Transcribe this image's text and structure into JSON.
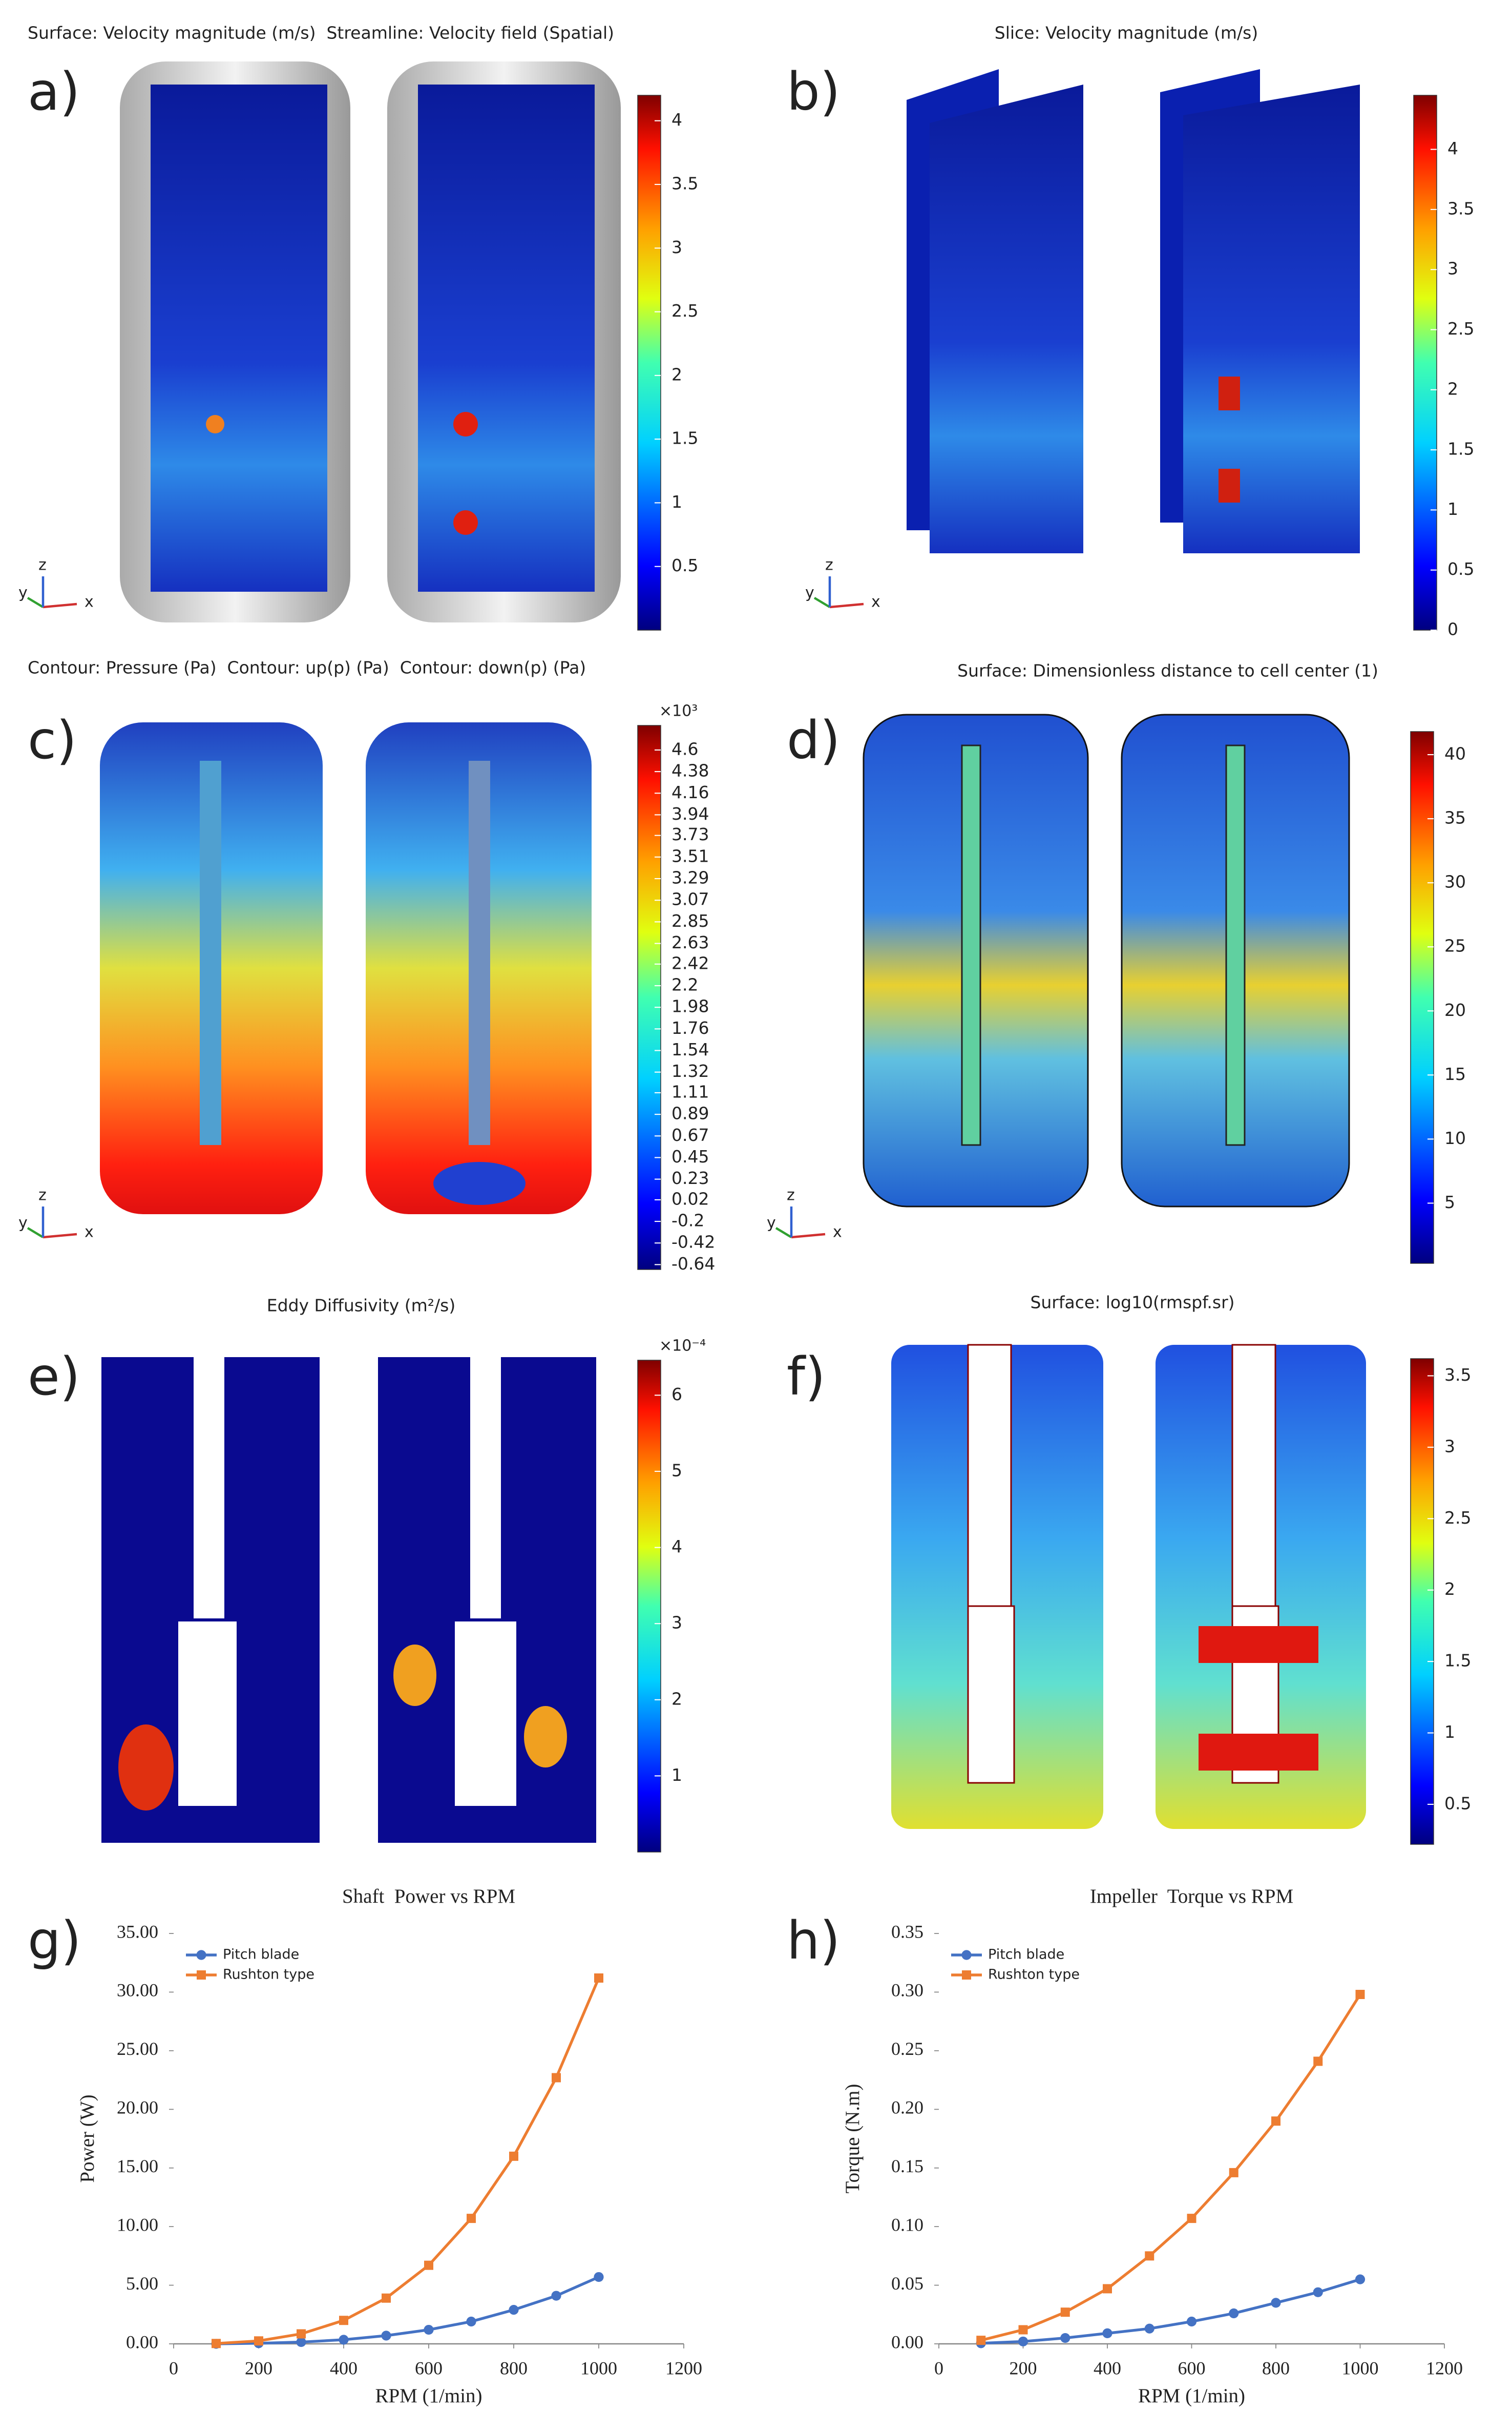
{
  "panels": [
    {
      "letter": "a)",
      "title": "Surface: Velocity magnitude (m/s)  Streamline: Velocity field (Spatial)",
      "colorbar": {
        "lim": [
          0,
          4.2
        ],
        "ticks": [
          0.5,
          1,
          1.5,
          2,
          2.5,
          3,
          3.5,
          4
        ]
      }
    },
    {
      "letter": "b)",
      "title": "Slice: Velocity magnitude (m/s)",
      "colorbar": {
        "lim": [
          0,
          4.45
        ],
        "ticks": [
          0,
          0.5,
          1,
          1.5,
          2,
          2.5,
          3,
          3.5,
          4
        ]
      }
    },
    {
      "letter": "c)",
      "title": "Contour: Pressure (Pa)  Contour: up(p) (Pa)  Contour: down(p) (Pa)",
      "colorbar": {
        "lim": [
          -0.69,
          4.85
        ],
        "exponent": "×10³",
        "ticks": [
          4.6,
          4.38,
          4.16,
          3.94,
          3.73,
          3.51,
          3.29,
          3.07,
          2.85,
          2.63,
          2.42,
          2.2,
          1.98,
          1.76,
          1.54,
          1.32,
          1.11,
          0.89,
          0.67,
          0.45,
          0.23,
          0.02,
          -0.2,
          -0.42,
          -0.64
        ]
      }
    },
    {
      "letter": "d)",
      "title": "Surface: Dimensionless distance to cell center (1)",
      "colorbar": {
        "lim": [
          0.3,
          41.8
        ],
        "ticks": [
          5,
          10,
          15,
          20,
          25,
          30,
          35,
          40
        ]
      }
    },
    {
      "letter": "e)",
      "title": "Eddy Diffusivity (m²/s)",
      "colorbar": {
        "lim": [
          0,
          6.46
        ],
        "exponent": "×10⁻⁴",
        "ticks": [
          1,
          2,
          3,
          4,
          5,
          6
        ]
      }
    },
    {
      "letter": "f)",
      "title": "Surface: log10(rmspf.sr)",
      "colorbar": {
        "lim": [
          0.22,
          3.62
        ],
        "ticks": [
          0.5,
          1,
          1.5,
          2,
          2.5,
          3,
          3.5
        ]
      }
    }
  ],
  "triad": [
    "x",
    "y",
    "z"
  ],
  "chart_data": [
    {
      "type": "line",
      "panel_label": "g)",
      "title": "Shaft  Power vs RPM",
      "x_label": "RPM (1/min)",
      "y_label": "Power (W)",
      "x": [
        100,
        200,
        300,
        400,
        500,
        600,
        700,
        800,
        900,
        1000
      ],
      "series": [
        {
          "name": "Pitch blade",
          "color": "#4472c4",
          "marker": "circle",
          "values": [
            0.0,
            0.05,
            0.15,
            0.35,
            0.7,
            1.2,
            1.9,
            2.9,
            4.1,
            5.7
          ]
        },
        {
          "name": "Rushton type",
          "color": "#ed7d31",
          "marker": "square",
          "values": [
            0.03,
            0.25,
            0.85,
            2.0,
            3.9,
            6.7,
            10.7,
            16.0,
            22.7,
            31.2
          ]
        }
      ],
      "xlim": [
        0,
        1200
      ],
      "xticks": [
        0,
        200,
        400,
        600,
        800,
        1000,
        1200
      ],
      "ylim": [
        0,
        35
      ],
      "yticks": [
        {
          "value": 0,
          "label": "0.00"
        },
        {
          "value": 5,
          "label": "5.00"
        },
        {
          "value": 10,
          "label": "10.00"
        },
        {
          "value": 15,
          "label": "15.00"
        },
        {
          "value": 20,
          "label": "20.00"
        },
        {
          "value": 25,
          "label": "25.00"
        },
        {
          "value": 30,
          "label": "30.00"
        },
        {
          "value": 35,
          "label": "35.00"
        }
      ]
    },
    {
      "type": "line",
      "panel_label": "h)",
      "title": "Impeller  Torque vs RPM",
      "x_label": "RPM (1/min)",
      "y_label": "Torque (N.m)",
      "x": [
        100,
        200,
        300,
        400,
        500,
        600,
        700,
        800,
        900,
        1000
      ],
      "series": [
        {
          "name": "Pitch blade",
          "color": "#4472c4",
          "marker": "circle",
          "values": [
            0.0005,
            0.002,
            0.005,
            0.009,
            0.013,
            0.019,
            0.026,
            0.035,
            0.044,
            0.055
          ]
        },
        {
          "name": "Rushton type",
          "color": "#ed7d31",
          "marker": "square",
          "values": [
            0.003,
            0.012,
            0.027,
            0.047,
            0.075,
            0.107,
            0.146,
            0.19,
            0.241,
            0.298
          ]
        }
      ],
      "xlim": [
        0,
        1200
      ],
      "xticks": [
        0,
        200,
        400,
        600,
        800,
        1000,
        1200
      ],
      "ylim": [
        0,
        0.35
      ],
      "yticks": [
        {
          "value": 0,
          "label": "0.00"
        },
        {
          "value": 0.05,
          "label": "0.05"
        },
        {
          "value": 0.1,
          "label": "0.10"
        },
        {
          "value": 0.15,
          "label": "0.15"
        },
        {
          "value": 0.2,
          "label": "0.20"
        },
        {
          "value": 0.25,
          "label": "0.25"
        },
        {
          "value": 0.3,
          "label": "0.30"
        },
        {
          "value": 0.35,
          "label": "0.35"
        }
      ]
    }
  ]
}
